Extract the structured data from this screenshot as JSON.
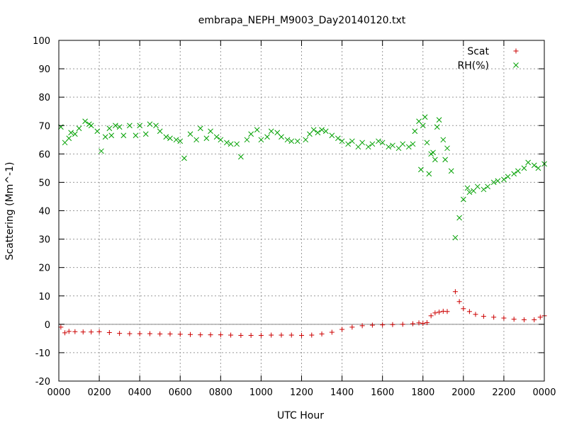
{
  "chart_data": {
    "type": "scatter",
    "title": "embrapa_NEPH_M9003_Day20140120.txt",
    "xlabel": "UTC Hour",
    "ylabel": "Scattering (Mm^-1)",
    "xlim": [
      0,
      24
    ],
    "ylim": [
      -20,
      100
    ],
    "x_unit": "hours since 0000 UTC",
    "yticks": [
      -20,
      -10,
      0,
      10,
      20,
      30,
      40,
      50,
      60,
      70,
      80,
      90,
      100
    ],
    "xticks": [
      {
        "value": 0,
        "label": "0000"
      },
      {
        "value": 2,
        "label": "0200"
      },
      {
        "value": 4,
        "label": "0400"
      },
      {
        "value": 6,
        "label": "0600"
      },
      {
        "value": 8,
        "label": "0800"
      },
      {
        "value": 10,
        "label": "1000"
      },
      {
        "value": 12,
        "label": "1200"
      },
      {
        "value": 14,
        "label": "1400"
      },
      {
        "value": 16,
        "label": "1600"
      },
      {
        "value": 18,
        "label": "1800"
      },
      {
        "value": 20,
        "label": "2000"
      },
      {
        "value": 22,
        "label": "2200"
      },
      {
        "value": 24,
        "label": "0000"
      }
    ],
    "grid": true,
    "zero_line": true,
    "legend_position": "top-right",
    "series": [
      {
        "name": "Scat",
        "color": "#cc0000",
        "marker": "plus",
        "points": [
          [
            0.1,
            -1.0
          ],
          [
            0.3,
            -3.0
          ],
          [
            0.5,
            -2.5
          ],
          [
            0.8,
            -2.6
          ],
          [
            1.2,
            -2.7
          ],
          [
            1.6,
            -2.7
          ],
          [
            2.0,
            -2.6
          ],
          [
            2.5,
            -2.9
          ],
          [
            3.0,
            -3.2
          ],
          [
            3.5,
            -3.3
          ],
          [
            4.0,
            -3.3
          ],
          [
            4.5,
            -3.3
          ],
          [
            5.0,
            -3.4
          ],
          [
            5.5,
            -3.4
          ],
          [
            6.0,
            -3.5
          ],
          [
            6.5,
            -3.6
          ],
          [
            7.0,
            -3.7
          ],
          [
            7.5,
            -3.7
          ],
          [
            8.0,
            -3.7
          ],
          [
            8.5,
            -3.8
          ],
          [
            9.0,
            -3.9
          ],
          [
            9.5,
            -3.9
          ],
          [
            10.0,
            -3.9
          ],
          [
            10.5,
            -3.8
          ],
          [
            11.0,
            -3.8
          ],
          [
            11.5,
            -3.8
          ],
          [
            12.0,
            -3.9
          ],
          [
            12.5,
            -3.8
          ],
          [
            13.0,
            -3.4
          ],
          [
            13.5,
            -2.8
          ],
          [
            14.0,
            -1.8
          ],
          [
            14.5,
            -1.0
          ],
          [
            15.0,
            -0.5
          ],
          [
            15.5,
            -0.3
          ],
          [
            16.0,
            -0.2
          ],
          [
            16.5,
            -0.1
          ],
          [
            17.0,
            0.0
          ],
          [
            17.5,
            0.2
          ],
          [
            17.8,
            0.5
          ],
          [
            18.0,
            0.3
          ],
          [
            18.2,
            0.6
          ],
          [
            18.4,
            3.0
          ],
          [
            18.6,
            4.0
          ],
          [
            18.8,
            4.3
          ],
          [
            19.0,
            4.6
          ],
          [
            19.2,
            4.5
          ],
          [
            19.6,
            11.5
          ],
          [
            19.8,
            8.0
          ],
          [
            20.0,
            5.5
          ],
          [
            20.3,
            4.5
          ],
          [
            20.6,
            3.5
          ],
          [
            21.0,
            2.8
          ],
          [
            21.5,
            2.5
          ],
          [
            22.0,
            2.2
          ],
          [
            22.5,
            1.8
          ],
          [
            23.0,
            1.6
          ],
          [
            23.5,
            1.6
          ],
          [
            23.8,
            2.5
          ],
          [
            24.0,
            3.0
          ]
        ]
      },
      {
        "name": "RH(%)",
        "color": "#00a000",
        "marker": "cross",
        "points": [
          [
            0.1,
            69.5
          ],
          [
            0.3,
            64.0
          ],
          [
            0.5,
            65.5
          ],
          [
            0.8,
            67.0
          ],
          [
            1.0,
            69.0
          ],
          [
            1.3,
            71.5
          ],
          [
            1.6,
            70.0
          ],
          [
            1.9,
            68.0
          ],
          [
            2.1,
            61.0
          ],
          [
            2.3,
            66.0
          ],
          [
            2.5,
            69.0
          ],
          [
            2.8,
            70.0
          ],
          [
            3.0,
            69.5
          ],
          [
            3.5,
            70.0
          ],
          [
            4.0,
            70.0
          ],
          [
            4.5,
            70.5
          ],
          [
            5.0,
            68.0
          ],
          [
            5.5,
            65.5
          ],
          [
            6.0,
            64.5
          ],
          [
            6.2,
            58.5
          ],
          [
            6.5,
            67.0
          ],
          [
            7.0,
            69.0
          ],
          [
            7.5,
            68.0
          ],
          [
            8.0,
            65.0
          ],
          [
            8.5,
            63.5
          ],
          [
            8.8,
            63.5
          ],
          [
            9.0,
            59.0
          ],
          [
            9.3,
            65.0
          ],
          [
            9.8,
            68.5
          ],
          [
            10.3,
            66.0
          ],
          [
            10.8,
            67.5
          ],
          [
            11.3,
            65.0
          ],
          [
            11.8,
            64.5
          ],
          [
            12.2,
            65.0
          ],
          [
            12.6,
            68.5
          ],
          [
            13.0,
            68.5
          ],
          [
            13.5,
            66.5
          ],
          [
            14.0,
            64.5
          ],
          [
            14.5,
            64.5
          ],
          [
            15.0,
            64.0
          ],
          [
            15.5,
            63.5
          ],
          [
            16.0,
            64.0
          ],
          [
            16.5,
            63.0
          ],
          [
            17.0,
            63.5
          ],
          [
            17.5,
            63.5
          ],
          [
            17.8,
            71.5
          ],
          [
            18.0,
            70.0
          ],
          [
            18.2,
            64.0
          ],
          [
            18.4,
            60.0
          ],
          [
            18.6,
            58.0
          ],
          [
            18.8,
            72.0
          ],
          [
            19.0,
            65.0
          ],
          [
            19.2,
            62.0
          ],
          [
            19.4,
            54.0
          ],
          [
            19.6,
            30.5
          ],
          [
            19.8,
            37.5
          ],
          [
            20.0,
            44.0
          ],
          [
            20.2,
            48.0
          ],
          [
            20.5,
            47.0
          ],
          [
            21.0,
            47.5
          ],
          [
            21.5,
            50.0
          ],
          [
            22.0,
            51.0
          ],
          [
            22.5,
            53.0
          ],
          [
            23.0,
            55.0
          ],
          [
            23.5,
            56.0
          ],
          [
            24.0,
            56.5
          ],
          [
            0.6,
            67.5
          ],
          [
            1.5,
            70.5
          ],
          [
            2.6,
            66.5
          ],
          [
            3.2,
            66.5
          ],
          [
            3.8,
            66.5
          ],
          [
            4.3,
            67.0
          ],
          [
            4.8,
            70.0
          ],
          [
            5.3,
            66.0
          ],
          [
            5.8,
            65.0
          ],
          [
            6.8,
            65.0
          ],
          [
            7.3,
            65.5
          ],
          [
            7.8,
            66.0
          ],
          [
            8.3,
            64.0
          ],
          [
            9.5,
            67.0
          ],
          [
            10.0,
            65.0
          ],
          [
            10.5,
            68.0
          ],
          [
            11.0,
            66.0
          ],
          [
            11.5,
            64.5
          ],
          [
            12.4,
            67.0
          ],
          [
            12.8,
            67.5
          ],
          [
            13.2,
            68.0
          ],
          [
            13.8,
            65.5
          ],
          [
            14.3,
            63.5
          ],
          [
            14.8,
            62.5
          ],
          [
            15.3,
            62.5
          ],
          [
            15.8,
            64.5
          ],
          [
            16.3,
            62.5
          ],
          [
            16.8,
            62.0
          ],
          [
            17.3,
            62.5
          ],
          [
            17.6,
            68.0
          ],
          [
            17.9,
            54.5
          ],
          [
            18.1,
            73.0
          ],
          [
            18.3,
            53.0
          ],
          [
            18.5,
            60.5
          ],
          [
            18.7,
            69.5
          ],
          [
            19.1,
            58.0
          ],
          [
            20.3,
            46.5
          ],
          [
            20.7,
            48.5
          ],
          [
            21.2,
            48.5
          ],
          [
            21.7,
            50.5
          ],
          [
            22.2,
            52.0
          ],
          [
            22.7,
            54.0
          ],
          [
            23.2,
            57.0
          ],
          [
            23.7,
            55.0
          ]
        ]
      }
    ]
  }
}
